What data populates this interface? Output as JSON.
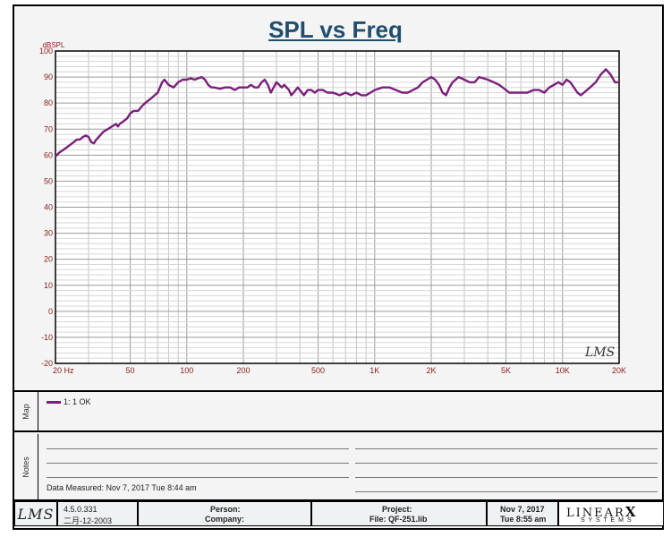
{
  "title": "SPL vs Freq",
  "chart_data": {
    "type": "line",
    "title": "SPL vs Freq",
    "ylabel": "dBSPL",
    "xlabel": "",
    "xscale": "log",
    "xlim": [
      20,
      20000
    ],
    "ylim": [
      -20,
      100
    ],
    "y_ticks": [
      "100",
      "90",
      "80",
      "70",
      "60",
      "50",
      "40",
      "30",
      "20",
      "10",
      "0",
      "-10",
      "-20"
    ],
    "x_ticks": [
      {
        "v": 20,
        "label": "20  Hz"
      },
      {
        "v": 50,
        "label": "50"
      },
      {
        "v": 100,
        "label": "100"
      },
      {
        "v": 200,
        "label": "200"
      },
      {
        "v": 500,
        "label": "500"
      },
      {
        "v": 1000,
        "label": "1K"
      },
      {
        "v": 2000,
        "label": "2K"
      },
      {
        "v": 5000,
        "label": "5K"
      },
      {
        "v": 10000,
        "label": "10K"
      },
      {
        "v": 20000,
        "label": "20K"
      }
    ],
    "grid": true,
    "series": [
      {
        "name": "1: 1  OK",
        "color": "#7b1f7b",
        "points": [
          [
            20,
            59.5
          ],
          [
            21,
            61
          ],
          [
            22,
            62
          ],
          [
            23,
            63
          ],
          [
            24,
            64
          ],
          [
            25,
            65
          ],
          [
            26,
            66
          ],
          [
            27,
            66
          ],
          [
            28,
            67
          ],
          [
            29,
            67.5
          ],
          [
            30,
            67
          ],
          [
            31,
            65
          ],
          [
            32,
            64.5
          ],
          [
            33,
            66
          ],
          [
            34,
            67
          ],
          [
            35,
            68
          ],
          [
            36,
            69
          ],
          [
            37,
            69.5
          ],
          [
            38,
            70
          ],
          [
            40,
            71
          ],
          [
            42,
            72
          ],
          [
            43,
            71
          ],
          [
            44,
            72
          ],
          [
            46,
            73
          ],
          [
            48,
            74
          ],
          [
            50,
            76
          ],
          [
            52,
            77
          ],
          [
            55,
            77
          ],
          [
            58,
            79
          ],
          [
            60,
            80
          ],
          [
            65,
            82
          ],
          [
            70,
            84
          ],
          [
            74,
            88
          ],
          [
            76,
            89
          ],
          [
            78,
            88
          ],
          [
            80,
            87
          ],
          [
            85,
            86
          ],
          [
            90,
            88
          ],
          [
            95,
            89
          ],
          [
            100,
            89
          ],
          [
            105,
            89.5
          ],
          [
            110,
            89
          ],
          [
            115,
            89.5
          ],
          [
            120,
            90
          ],
          [
            125,
            89
          ],
          [
            130,
            87
          ],
          [
            135,
            86
          ],
          [
            140,
            86
          ],
          [
            150,
            85.5
          ],
          [
            160,
            86
          ],
          [
            170,
            86
          ],
          [
            180,
            85
          ],
          [
            190,
            86
          ],
          [
            200,
            86
          ],
          [
            210,
            86
          ],
          [
            220,
            87
          ],
          [
            230,
            86
          ],
          [
            240,
            86
          ],
          [
            250,
            88
          ],
          [
            260,
            89
          ],
          [
            270,
            87
          ],
          [
            280,
            84
          ],
          [
            290,
            86
          ],
          [
            300,
            88
          ],
          [
            310,
            87
          ],
          [
            320,
            86
          ],
          [
            330,
            87
          ],
          [
            350,
            85
          ],
          [
            360,
            83
          ],
          [
            370,
            84
          ],
          [
            390,
            86
          ],
          [
            400,
            85
          ],
          [
            420,
            83
          ],
          [
            440,
            85
          ],
          [
            460,
            85
          ],
          [
            480,
            84
          ],
          [
            500,
            85
          ],
          [
            530,
            85
          ],
          [
            560,
            84
          ],
          [
            600,
            84
          ],
          [
            650,
            83
          ],
          [
            700,
            84
          ],
          [
            750,
            83
          ],
          [
            800,
            84
          ],
          [
            850,
            83
          ],
          [
            900,
            83
          ],
          [
            950,
            84
          ],
          [
            1000,
            85
          ],
          [
            1100,
            86
          ],
          [
            1200,
            86
          ],
          [
            1300,
            85
          ],
          [
            1400,
            84
          ],
          [
            1500,
            84
          ],
          [
            1600,
            85
          ],
          [
            1700,
            86
          ],
          [
            1800,
            88
          ],
          [
            1900,
            89
          ],
          [
            2000,
            90
          ],
          [
            2100,
            89
          ],
          [
            2200,
            87
          ],
          [
            2300,
            84
          ],
          [
            2400,
            83
          ],
          [
            2500,
            86
          ],
          [
            2600,
            88
          ],
          [
            2800,
            90
          ],
          [
            3000,
            89
          ],
          [
            3200,
            88
          ],
          [
            3400,
            88
          ],
          [
            3600,
            90
          ],
          [
            4000,
            89
          ],
          [
            4300,
            88
          ],
          [
            4600,
            87
          ],
          [
            5000,
            85
          ],
          [
            5200,
            84
          ],
          [
            5500,
            84
          ],
          [
            6000,
            84
          ],
          [
            6500,
            84
          ],
          [
            7000,
            85
          ],
          [
            7500,
            85
          ],
          [
            8000,
            84
          ],
          [
            8500,
            86
          ],
          [
            9000,
            87
          ],
          [
            9500,
            88
          ],
          [
            10000,
            87
          ],
          [
            10500,
            89
          ],
          [
            11000,
            88
          ],
          [
            11500,
            86
          ],
          [
            12000,
            84
          ],
          [
            12500,
            83
          ],
          [
            13000,
            84
          ],
          [
            14000,
            86
          ],
          [
            15000,
            88
          ],
          [
            16000,
            91
          ],
          [
            17000,
            93
          ],
          [
            18000,
            91
          ],
          [
            19000,
            88
          ],
          [
            20000,
            88
          ]
        ]
      }
    ]
  },
  "logo_text": "LMS",
  "map_panel": {
    "label": "Map",
    "legend_label": "1: 1  OK"
  },
  "notes_panel": {
    "label": "Notes",
    "measured_label": "Data Measured: Nov  7, 2017  Tue  8:44 am"
  },
  "footer": {
    "logo": "LMS",
    "version": "4.5.0.331",
    "build_date": "二月-12-2003",
    "person_label": "Person:",
    "company_label": "Company:",
    "project_label": "Project:",
    "file_label": "File: QF-251.lib",
    "date": "Nov  7, 2017",
    "time": "Tue  8:55 am",
    "brand": "LINEAR",
    "brand_x": "X",
    "brand_sub": "S Y S T E M S"
  },
  "colors": {
    "curve": "#7b1f7b",
    "title": "#1f4e6e",
    "axis_label": "#8b1a1a"
  }
}
